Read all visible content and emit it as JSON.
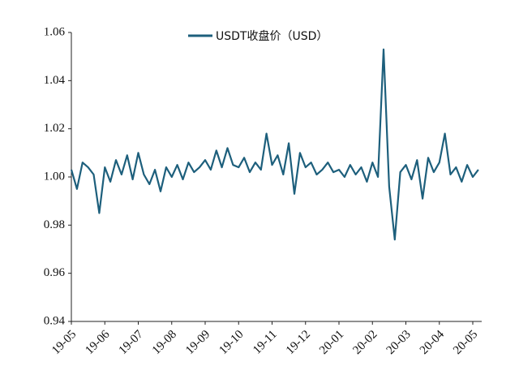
{
  "chart_data": {
    "type": "line",
    "legend": "upper center",
    "categories": [
      "19-05",
      null,
      null,
      null,
      null,
      null,
      "19-06",
      null,
      null,
      null,
      null,
      null,
      "19-07",
      null,
      null,
      null,
      null,
      null,
      "19-08",
      null,
      null,
      null,
      null,
      null,
      "19-09",
      null,
      null,
      null,
      null,
      null,
      "19-10",
      null,
      null,
      null,
      null,
      null,
      "19-11",
      null,
      null,
      null,
      null,
      null,
      "19-12",
      null,
      null,
      null,
      null,
      null,
      "20-01",
      null,
      null,
      null,
      null,
      null,
      "20-02",
      null,
      null,
      null,
      null,
      null,
      "20-03",
      null,
      null,
      null,
      null,
      null,
      "20-04",
      null,
      null,
      null,
      null,
      null,
      "20-05",
      null
    ],
    "series": [
      {
        "name": "USDT收盘价（USD）",
        "color": "#1d5f7c",
        "values": [
          1.003,
          0.995,
          1.006,
          1.004,
          1.001,
          0.985,
          1.004,
          0.998,
          1.007,
          1.001,
          1.009,
          0.999,
          1.01,
          1.001,
          0.997,
          1.003,
          0.994,
          1.004,
          1.0,
          1.005,
          0.999,
          1.006,
          1.002,
          1.004,
          1.007,
          1.003,
          1.011,
          1.004,
          1.012,
          1.005,
          1.004,
          1.008,
          1.002,
          1.006,
          1.003,
          1.018,
          1.005,
          1.009,
          1.001,
          1.014,
          0.993,
          1.01,
          1.004,
          1.006,
          1.001,
          1.003,
          1.006,
          1.002,
          1.003,
          1.0,
          1.005,
          1.001,
          1.004,
          0.998,
          1.006,
          1.0,
          1.053,
          0.996,
          0.974,
          1.002,
          1.005,
          0.999,
          1.007,
          0.991,
          1.008,
          1.002,
          1.006,
          1.018,
          1.001,
          1.004,
          0.998,
          1.005,
          1.0,
          1.003
        ]
      }
    ],
    "ylim": [
      0.94,
      1.06
    ],
    "yticks": [
      0.94,
      0.96,
      0.98,
      {
        "value": 1,
        "label": "1.00"
      },
      1.02,
      1.04,
      1.06
    ]
  }
}
